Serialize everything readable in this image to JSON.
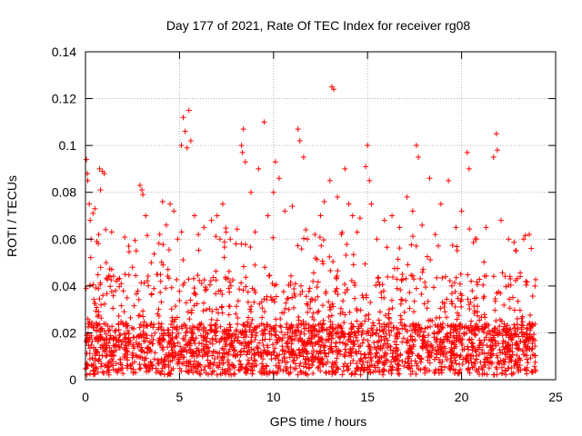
{
  "chart_data": {
    "type": "scatter",
    "title": "Day 177 of 2021, Rate Of TEC Index for receiver rg08",
    "xlabel": "GPS time / hours",
    "ylabel": "ROTI / TECUs",
    "xlim": [
      0,
      25
    ],
    "ylim": [
      0,
      0.14
    ],
    "x_ticks": [
      0,
      5,
      10,
      15,
      20,
      25
    ],
    "x_tick_labels": [
      "0",
      "5",
      "10",
      "15",
      "20",
      "25"
    ],
    "y_ticks": [
      0,
      0.02,
      0.04,
      0.06,
      0.08,
      0.1,
      0.12,
      0.14
    ],
    "y_tick_labels": [
      "0",
      "0.02",
      "0.04",
      "0.06",
      "0.08",
      "0.1",
      "0.12",
      "0.14"
    ],
    "grid": true,
    "marker": "+",
    "color": "#ff0000",
    "x_data_range": [
      0,
      24
    ],
    "series": [
      {
        "name": "ROTI",
        "points": [
          [
            0.05,
            0.094
          ],
          [
            0.1,
            0.088
          ],
          [
            0.12,
            0.085
          ],
          [
            0.2,
            0.075
          ],
          [
            0.25,
            0.068
          ],
          [
            0.3,
            0.06
          ],
          [
            0.4,
            0.071
          ],
          [
            0.5,
            0.073
          ],
          [
            0.6,
            0.059
          ],
          [
            0.7,
            0.062
          ],
          [
            0.75,
            0.09
          ],
          [
            0.8,
            0.081
          ],
          [
            0.9,
            0.089
          ],
          [
            1.0,
            0.088
          ],
          [
            1.1,
            0.05
          ],
          [
            1.3,
            0.044
          ],
          [
            1.6,
            0.038
          ],
          [
            1.9,
            0.041
          ],
          [
            2.1,
            0.045
          ],
          [
            2.3,
            0.057
          ],
          [
            2.5,
            0.048
          ],
          [
            2.7,
            0.055
          ],
          [
            2.9,
            0.083
          ],
          [
            3.0,
            0.081
          ],
          [
            3.05,
            0.079
          ],
          [
            3.2,
            0.07
          ],
          [
            3.5,
            0.05
          ],
          [
            3.8,
            0.045
          ],
          [
            4.0,
            0.042
          ],
          [
            4.1,
            0.076
          ],
          [
            4.3,
            0.066
          ],
          [
            4.5,
            0.075
          ],
          [
            4.7,
            0.072
          ],
          [
            4.9,
            0.06
          ],
          [
            5.1,
            0.1
          ],
          [
            5.2,
            0.112
          ],
          [
            5.3,
            0.106
          ],
          [
            5.4,
            0.099
          ],
          [
            5.5,
            0.115
          ],
          [
            5.6,
            0.102
          ],
          [
            5.8,
            0.07
          ],
          [
            6.0,
            0.062
          ],
          [
            6.3,
            0.065
          ],
          [
            6.7,
            0.068
          ],
          [
            7.0,
            0.07
          ],
          [
            7.3,
            0.075
          ],
          [
            7.7,
            0.06
          ],
          [
            8.0,
            0.058
          ],
          [
            8.3,
            0.1
          ],
          [
            8.35,
            0.097
          ],
          [
            8.4,
            0.107
          ],
          [
            8.5,
            0.093
          ],
          [
            8.8,
            0.08
          ],
          [
            9.2,
            0.09
          ],
          [
            9.5,
            0.11
          ],
          [
            9.7,
            0.07
          ],
          [
            10.0,
            0.08
          ],
          [
            10.1,
            0.093
          ],
          [
            10.3,
            0.086
          ],
          [
            10.6,
            0.072
          ],
          [
            11.0,
            0.074
          ],
          [
            11.3,
            0.107
          ],
          [
            11.4,
            0.102
          ],
          [
            11.6,
            0.095
          ],
          [
            11.8,
            0.06
          ],
          [
            12.2,
            0.062
          ],
          [
            12.5,
            0.07
          ],
          [
            12.7,
            0.076
          ],
          [
            13.0,
            0.085
          ],
          [
            13.1,
            0.125
          ],
          [
            13.2,
            0.124
          ],
          [
            13.4,
            0.078
          ],
          [
            13.8,
            0.09
          ],
          [
            14.0,
            0.075
          ],
          [
            14.2,
            0.07
          ],
          [
            14.6,
            0.069
          ],
          [
            14.9,
            0.091
          ],
          [
            15.0,
            0.1
          ],
          [
            15.1,
            0.085
          ],
          [
            15.2,
            0.075
          ],
          [
            15.5,
            0.06
          ],
          [
            15.9,
            0.068
          ],
          [
            16.3,
            0.07
          ],
          [
            16.7,
            0.065
          ],
          [
            17.1,
            0.078
          ],
          [
            17.4,
            0.072
          ],
          [
            17.6,
            0.1
          ],
          [
            17.7,
            0.095
          ],
          [
            17.9,
            0.066
          ],
          [
            18.3,
            0.086
          ],
          [
            18.6,
            0.062
          ],
          [
            18.9,
            0.075
          ],
          [
            19.3,
            0.085
          ],
          [
            19.7,
            0.065
          ],
          [
            20.0,
            0.072
          ],
          [
            20.3,
            0.097
          ],
          [
            20.4,
            0.09
          ],
          [
            20.8,
            0.06
          ],
          [
            21.3,
            0.065
          ],
          [
            21.7,
            0.095
          ],
          [
            21.85,
            0.105
          ],
          [
            21.9,
            0.098
          ],
          [
            22.1,
            0.068
          ],
          [
            22.5,
            0.06
          ],
          [
            22.9,
            0.055
          ],
          [
            23.3,
            0.06
          ],
          [
            23.6,
            0.062
          ],
          [
            23.9,
            0.04
          ]
        ]
      }
    ]
  }
}
